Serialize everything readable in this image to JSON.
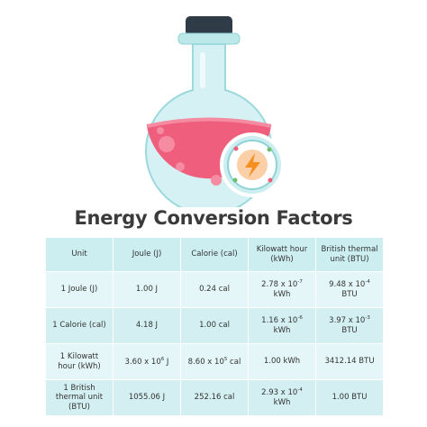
{
  "title": "Energy Conversion Factors",
  "table": {
    "header": [
      "Unit",
      "Joule (J)",
      "Calorie (cal)",
      "Kilowatt hour (kWh)",
      "British thermal unit (BTU)"
    ],
    "rows": [
      [
        "1 Joule (J)",
        "1.00 J",
        "0.24 cal",
        {
          "text": "2.78 x 10",
          "sup": "-7",
          "after": " kWh"
        },
        {
          "text": "9.48 x 10",
          "sup": "-4",
          "after": " BTU"
        }
      ],
      [
        "1 Calorie (cal)",
        "4.18 J",
        "1.00 cal",
        {
          "text": "1.16 x 10",
          "sup": "-6",
          "after": " kWh"
        },
        {
          "text": "3.97 x 10",
          "sup": "-3",
          "after": " BTU"
        }
      ],
      [
        "1 Kilowatt hour (kWh)",
        {
          "text": "3.60 x 10",
          "sup": "6",
          "after": " J"
        },
        {
          "text": "8.60 x 10",
          "sup": "5",
          "after": " cal"
        },
        "1.00 kWh",
        "3412.14 BTU"
      ],
      [
        "1 British thermal unit (BTU)",
        "1055.06 J",
        "252.16 cal",
        {
          "text": "2.93 x 10",
          "sup": "-4",
          "after": " kWh"
        },
        "1.00 BTU"
      ]
    ]
  }
}
